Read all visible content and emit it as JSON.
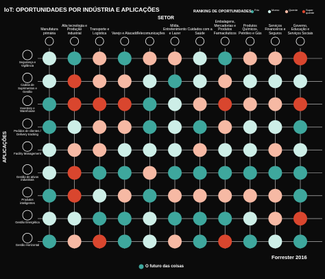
{
  "title": "IoT: OPORTUNIDADES POR INDÚSTRIA E APLICAÇÕES",
  "sector_label": "SETOR",
  "ranking_label": "RANKING DE OPORTUNIDADES",
  "applications_label": "APLICAÇÕES",
  "legend": [
    {
      "label": "Frio",
      "color": "#3ea79d"
    },
    {
      "label": "Morno",
      "color": "#cdeee7"
    },
    {
      "label": "Quente",
      "color": "#f6b9a4"
    },
    {
      "label": "Super quente",
      "color": "#d9462e"
    }
  ],
  "columns": [
    "Manufatura primária",
    "Alta tecnologia e Produção industrial",
    "Transporte e Logística",
    "Varejo e Atacado",
    "Telecomunicações",
    "Mídia, Entretenimento e Lazer",
    "Cuidados com a Saúde",
    "Embalagens, Mercadorias e Produtos Farmacêuticos",
    "Produtos Químicos, Petróleo e Gás",
    "Serviços Financeiros e Seguros",
    "Governo, Educação e Serviços Sociais"
  ],
  "rows": [
    "Segurança e Vigilância",
    "Cadeia de Suprimentos e Gestão",
    "Inventory e Warehouse",
    "Pedidos de clientes / Delivery tracking",
    "Facility Management",
    "Gestão de ativos industriais",
    "Produtos inteligentes",
    "Gestão Energética",
    "Gestão Horizontal"
  ],
  "matrix": [
    [
      1,
      0,
      2,
      0,
      2,
      2,
      1,
      0,
      2,
      2,
      3
    ],
    [
      1,
      3,
      2,
      2,
      1,
      0,
      1,
      2,
      1,
      1,
      1
    ],
    [
      0,
      3,
      3,
      3,
      0,
      1,
      2,
      3,
      2,
      2,
      3
    ],
    [
      0,
      1,
      2,
      2,
      0,
      1,
      0,
      2,
      1,
      1,
      0
    ],
    [
      1,
      2,
      2,
      1,
      1,
      1,
      2,
      1,
      1,
      2,
      1
    ],
    [
      1,
      3,
      0,
      0,
      2,
      0,
      0,
      0,
      0,
      0,
      0
    ],
    [
      0,
      3,
      1,
      2,
      0,
      2,
      2,
      2,
      2,
      2,
      0
    ],
    [
      1,
      1,
      0,
      0,
      1,
      0,
      0,
      0,
      1,
      2,
      3
    ],
    [
      0,
      2,
      3,
      0,
      1,
      2,
      0,
      3,
      0,
      1,
      0
    ]
  ],
  "source": "Forrester 2016",
  "brand": "O futuro das coisas"
}
